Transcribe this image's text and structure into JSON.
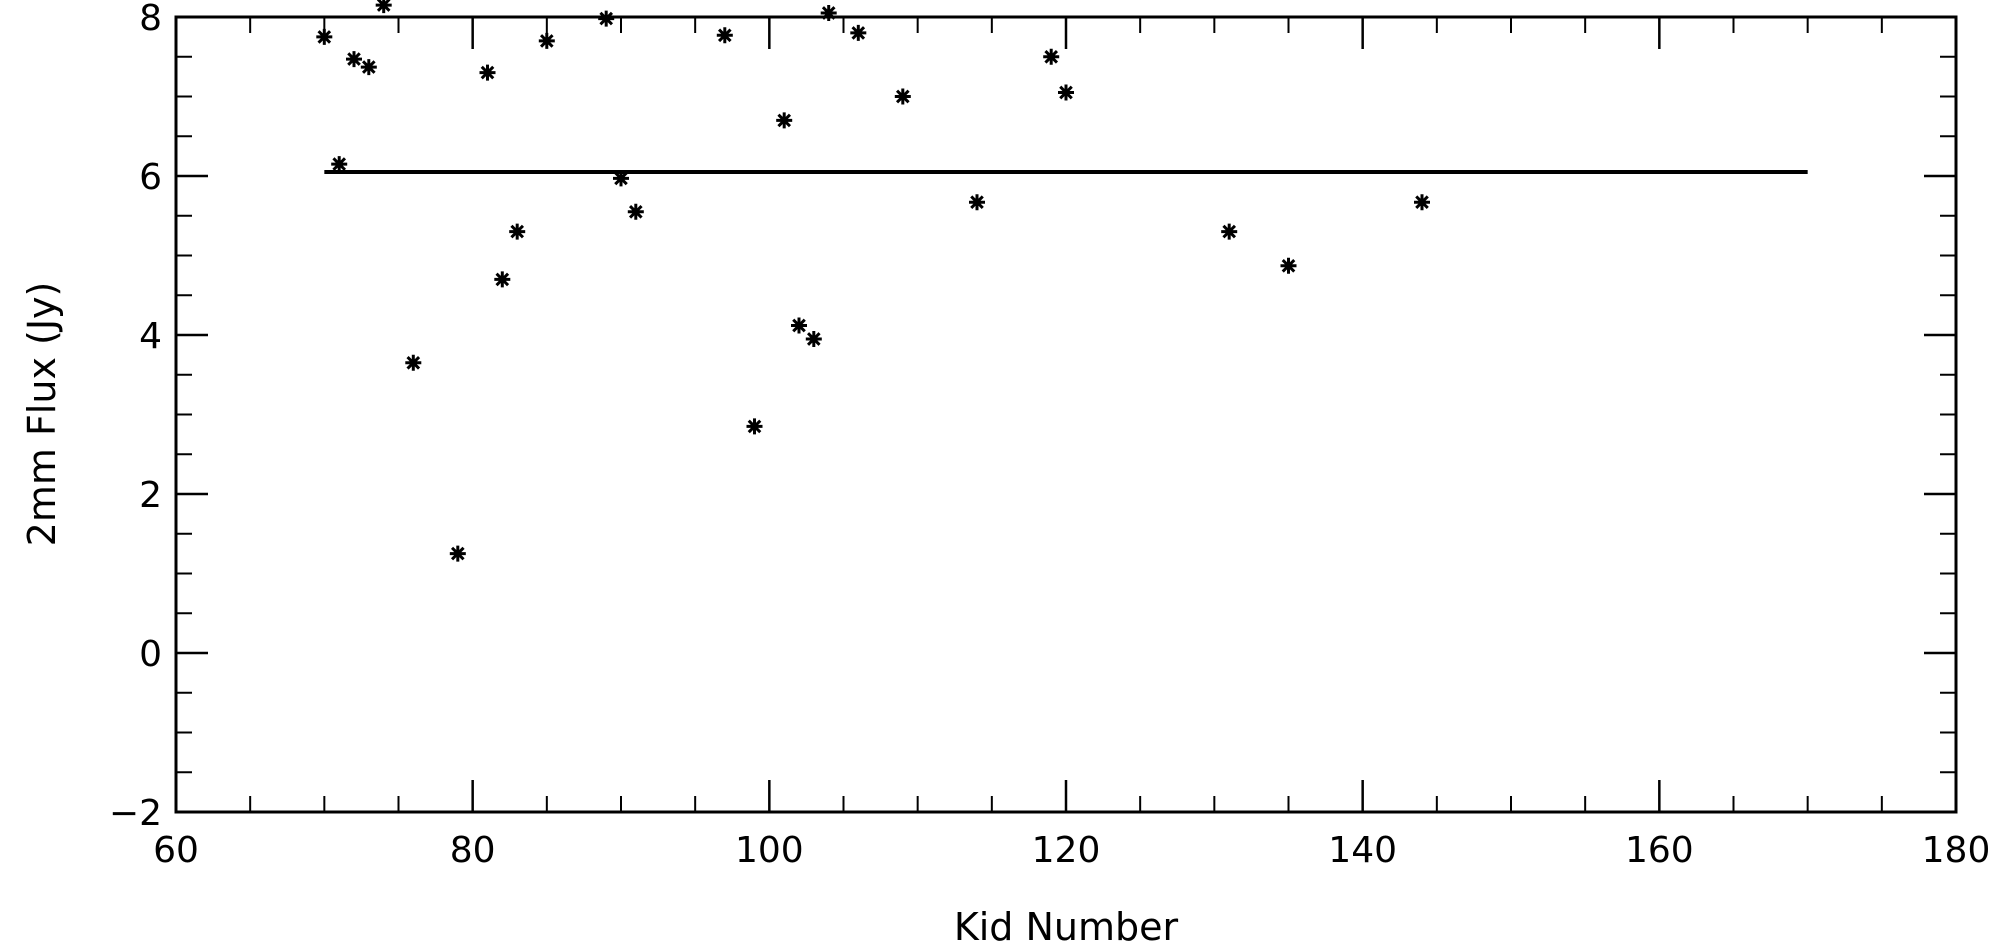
{
  "chart_data": {
    "type": "scatter",
    "xlabel": "Kid Number",
    "ylabel": "2mm Flux (Jy)",
    "xlim": [
      60,
      180
    ],
    "ylim": [
      -2,
      8
    ],
    "x_ticks": [
      60,
      80,
      100,
      120,
      140,
      160,
      180
    ],
    "y_ticks": [
      -2,
      0,
      2,
      4,
      6,
      8
    ],
    "x_tick_labels": [
      "60",
      "80",
      "100",
      "120",
      "140",
      "160",
      "180"
    ],
    "y_tick_labels": [
      "−2",
      "0",
      "2",
      "4",
      "6",
      "8"
    ],
    "x_minor_step": 5,
    "y_minor_step": 0.5,
    "grid": false,
    "legend": "none",
    "marker": "asterisk",
    "color": "#000000",
    "series": [
      {
        "points": [
          [
            70,
            7.75
          ],
          [
            71,
            6.15
          ],
          [
            72,
            7.47
          ],
          [
            73,
            7.37
          ],
          [
            74,
            8.15
          ],
          [
            76,
            3.65
          ],
          [
            79,
            1.25
          ],
          [
            81,
            7.3
          ],
          [
            82,
            4.7
          ],
          [
            83,
            5.3
          ],
          [
            85,
            7.7
          ],
          [
            89,
            7.98
          ],
          [
            90,
            5.97
          ],
          [
            91,
            5.55
          ],
          [
            97,
            7.77
          ],
          [
            99,
            2.85
          ],
          [
            101,
            6.7
          ],
          [
            102,
            4.12
          ],
          [
            103,
            3.95
          ],
          [
            104,
            8.05
          ],
          [
            106,
            7.8
          ],
          [
            109,
            7.0
          ],
          [
            114,
            5.67
          ],
          [
            119,
            7.5
          ],
          [
            120,
            7.05
          ],
          [
            131,
            5.3
          ],
          [
            135,
            4.87
          ],
          [
            144,
            5.67
          ]
        ]
      }
    ],
    "reference_lines": [
      {
        "x": [
          70,
          170
        ],
        "y": [
          6.05,
          6.05
        ]
      }
    ]
  }
}
